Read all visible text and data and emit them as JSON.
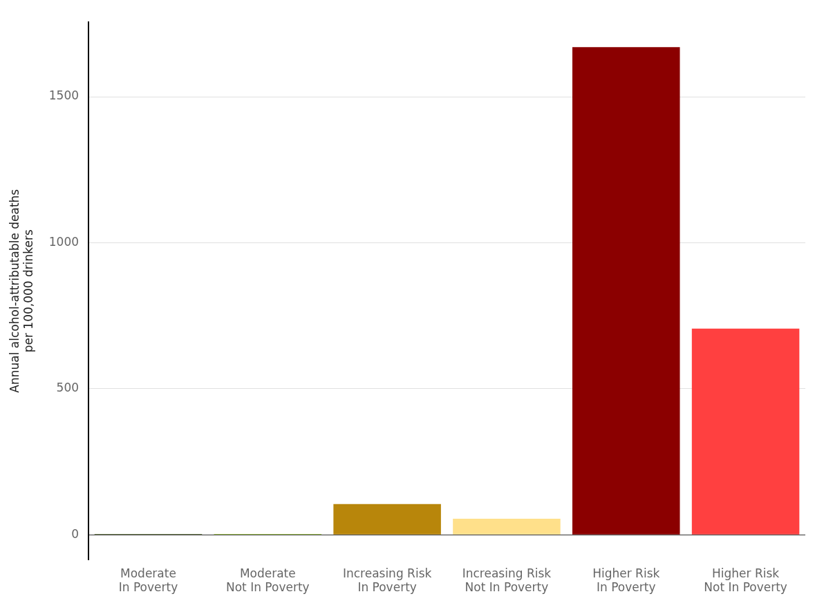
{
  "chart_data": {
    "type": "bar",
    "ylabel": "Annual alcohol-attributable deaths\nper 100,000 drinkers",
    "categories": [
      "Moderate\nIn Poverty",
      "Moderate\nNot In Poverty",
      "Increasing Risk\nIn Poverty",
      "Increasing Risk\nNot In Poverty",
      "Higher Risk\nIn Poverty",
      "Higher Risk\nNot In Poverty"
    ],
    "values": [
      3,
      3,
      105,
      55,
      1670,
      706
    ],
    "colors": [
      "#556b2f",
      "#9acd32",
      "#b8860b",
      "#ffe08a",
      "#8b0000",
      "#ff4040"
    ],
    "ylim": [
      -85,
      1755
    ],
    "yticks": [
      0,
      500,
      1000,
      1500
    ],
    "grid": "y",
    "legend": false
  }
}
